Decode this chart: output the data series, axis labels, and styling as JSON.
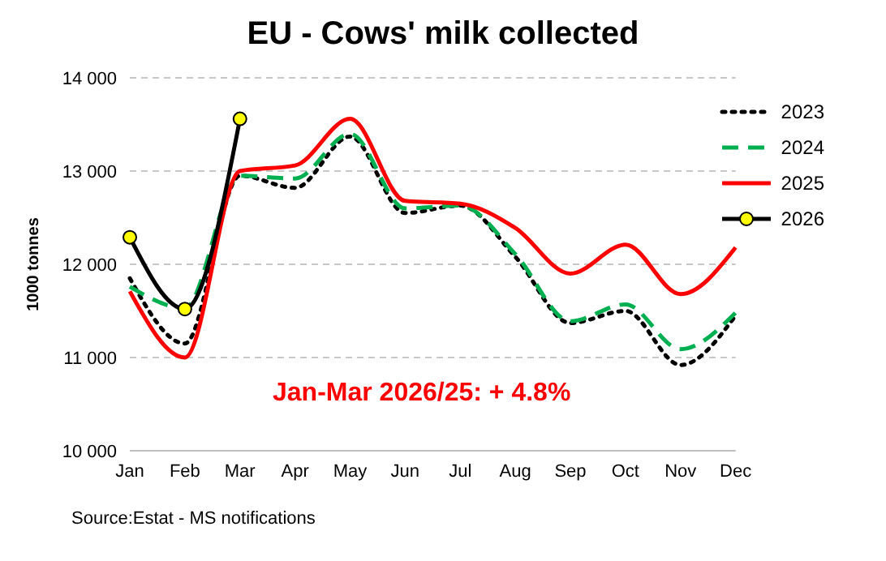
{
  "chart_data": {
    "type": "line",
    "title": "EU - Cows' milk collected",
    "ylabel": "1000 tonnes",
    "categories": [
      "Jan",
      "Feb",
      "Mar",
      "Apr",
      "May",
      "Jun",
      "Jul",
      "Aug",
      "Sep",
      "Oct",
      "Nov",
      "Dec"
    ],
    "series": [
      {
        "name": "2023",
        "color": "#000000",
        "line_style": "dotted",
        "marker": "none",
        "values": [
          11850,
          11150,
          12950,
          12820,
          13370,
          12550,
          12630,
          12080,
          11370,
          11500,
          10920,
          11450
        ]
      },
      {
        "name": "2024",
        "color": "#00b050",
        "line_style": "dashed",
        "marker": "none",
        "values": [
          11760,
          11530,
          12950,
          12920,
          13400,
          12600,
          12630,
          12110,
          11390,
          11570,
          11090,
          11480
        ]
      },
      {
        "name": "2025",
        "color": "#ff0000",
        "line_style": "solid",
        "marker": "none",
        "values": [
          11710,
          11000,
          13000,
          13060,
          13560,
          12680,
          12650,
          12390,
          11900,
          12210,
          11680,
          12180
        ]
      },
      {
        "name": "2026",
        "color": "#000000",
        "line_style": "solid",
        "marker": "circle",
        "values": [
          12290,
          11520,
          13560,
          null,
          null,
          null,
          null,
          null,
          null,
          null,
          null,
          null
        ]
      }
    ],
    "ylim": [
      10000,
      14000
    ],
    "yticks": [
      {
        "value": 10000,
        "label": "10 000"
      },
      {
        "value": 11000,
        "label": "11 000"
      },
      {
        "value": 12000,
        "label": "12 000"
      },
      {
        "value": 13000,
        "label": "13 000"
      },
      {
        "value": 14000,
        "label": "14 000"
      }
    ],
    "grid": "y",
    "legend": "top right",
    "annotations": [
      {
        "text": "Jan-Mar 2026/25: + 4.8%"
      },
      "Source:Estat - MS notifications"
    ]
  }
}
